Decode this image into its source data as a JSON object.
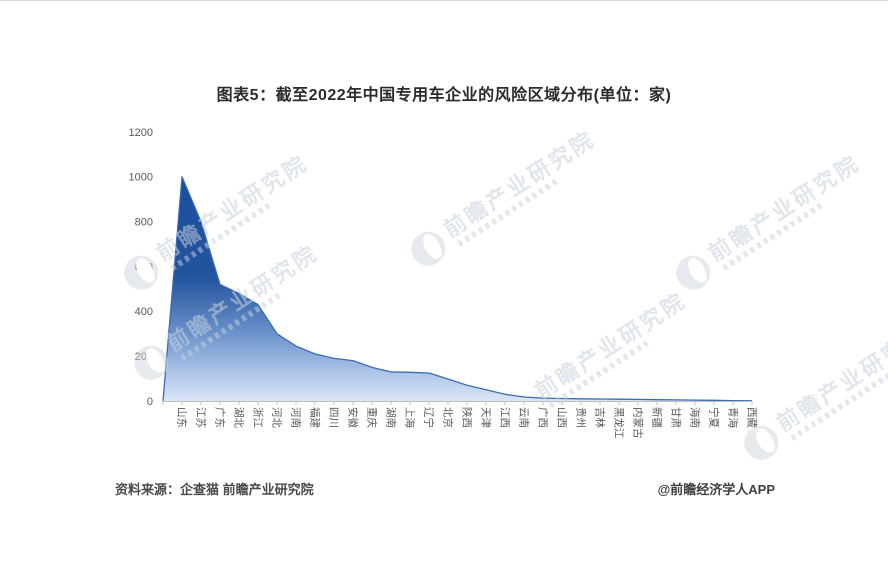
{
  "title": "图表5：截至2022年中国专用车企业的风险区域分布(单位：家)",
  "footer": {
    "source": "资料来源：企查猫 前瞻产业研究院",
    "credit": "@前瞻经济学人APP"
  },
  "watermark": {
    "text": "前瞻产业研究院"
  },
  "colors": {
    "area_top": "#1A4E9C",
    "area_mid": "#6C93CB",
    "area_bottom": "#DAE5F6",
    "edge_line": "#3A6CB4",
    "axis_line": "#BFBFBF",
    "tick_label": "#595959",
    "title_text": "#2B2B2B",
    "watermark_gray": "#CDD5E0"
  },
  "chart_data": {
    "type": "area",
    "title": "截至2022年中国专用车企业的风险区域分布",
    "unit": "家",
    "categories": [
      "山东",
      "江苏",
      "广东",
      "湖北",
      "浙江",
      "河北",
      "河南",
      "福建",
      "四川",
      "安徽",
      "重庆",
      "湖南",
      "上海",
      "辽宁",
      "北京",
      "陕西",
      "天津",
      "江西",
      "云南",
      "广西",
      "山西",
      "贵州",
      "吉林",
      "黑龙江",
      "内蒙古",
      "新疆",
      "甘肃",
      "海南",
      "宁夏",
      "青海",
      "西藏"
    ],
    "values": [
      1000,
      800,
      520,
      480,
      430,
      300,
      245,
      210,
      190,
      180,
      150,
      130,
      128,
      125,
      98,
      70,
      50,
      30,
      18,
      13,
      11,
      10,
      9,
      8,
      7,
      6,
      5,
      4,
      3,
      2,
      1
    ],
    "xlabel": "",
    "ylabel": "",
    "ylim": [
      0,
      1200
    ],
    "ytick_interval": 200,
    "grid": false,
    "legend": false
  }
}
